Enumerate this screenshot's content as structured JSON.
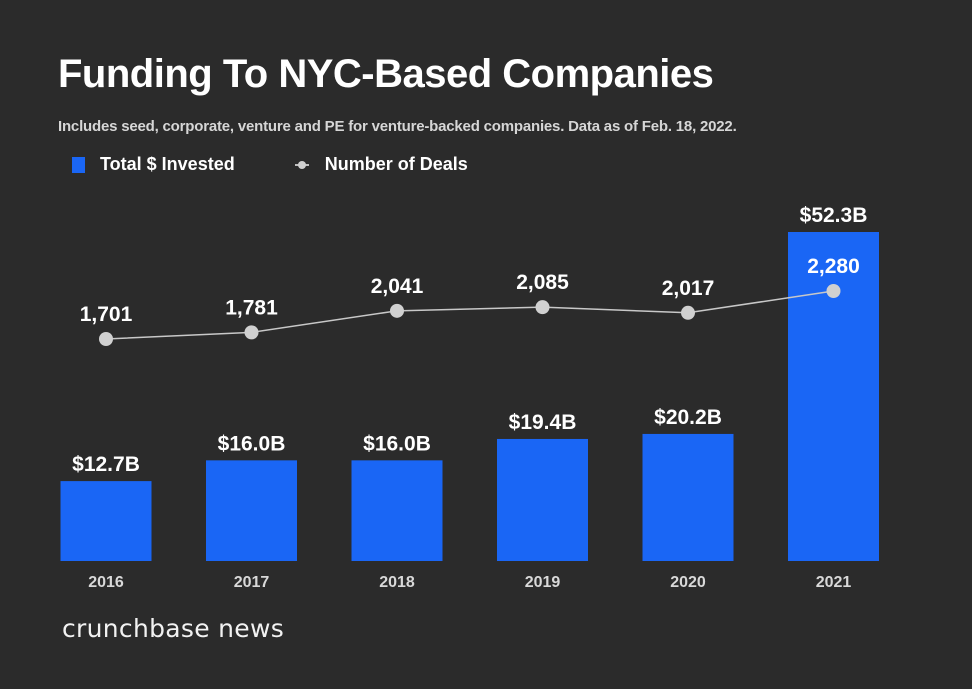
{
  "header": {
    "title": "Funding To NYC-Based Companies",
    "subtitle": "Includes seed, corporate, venture and PE for venture-backed companies. Data as of Feb. 18, 2022."
  },
  "legend": {
    "bars_label": "Total $ Invested",
    "line_label": "Number of Deals"
  },
  "footer": {
    "brand": "crunchbase news"
  },
  "colors": {
    "background": "#2b2b2b",
    "bar": "#1a66f5",
    "line": "#c8c8c8",
    "marker": "#d0d0d0",
    "text": "#ffffff",
    "axis_text": "#d9d9d9"
  },
  "chart_data": {
    "type": "bar",
    "title": "Funding To NYC-Based Companies",
    "subtitle": "Includes seed, corporate, venture and PE for venture-backed companies. Data as of Feb. 18, 2022.",
    "categories": [
      "2016",
      "2017",
      "2018",
      "2019",
      "2020",
      "2021"
    ],
    "series": [
      {
        "name": "Total $ Invested",
        "type": "bar",
        "unit": "USD billions",
        "values": [
          12.7,
          16.0,
          16.0,
          19.4,
          20.2,
          52.3
        ],
        "labels": [
          "$12.7B",
          "$16.0B",
          "$16.0B",
          "$19.4B",
          "$20.2B",
          "$52.3B"
        ]
      },
      {
        "name": "Number of Deals",
        "type": "line",
        "values": [
          1701,
          1781,
          2041,
          2085,
          2017,
          2280
        ],
        "labels": [
          "1,701",
          "1,781",
          "2,041",
          "2,085",
          "2,017",
          "2,280"
        ]
      }
    ],
    "xlabel": "",
    "ylabel": "",
    "ylim_bars": [
      0,
      52.3
    ],
    "grid": false,
    "legend_position": "top-left"
  }
}
